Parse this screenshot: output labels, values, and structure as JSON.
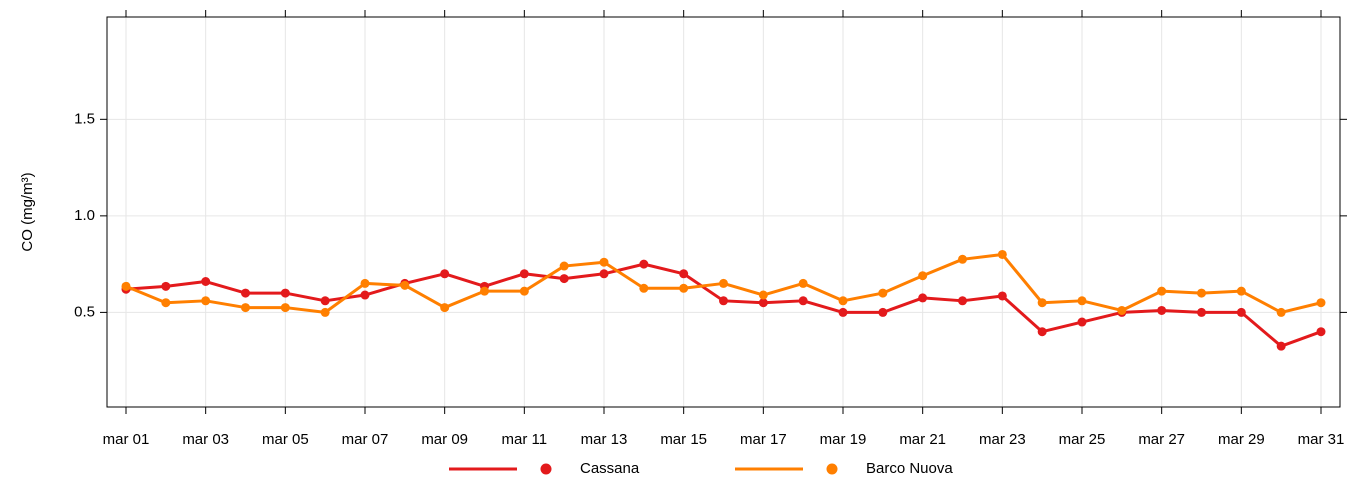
{
  "chart_data": {
    "type": "line",
    "y_label": "CO (mg/m³)",
    "categories": [
      "mar 01",
      null,
      "mar 03",
      null,
      "mar 05",
      null,
      "mar 07",
      null,
      "mar 09",
      null,
      "mar 11",
      null,
      "mar 13",
      null,
      "mar 15",
      null,
      "mar 17",
      null,
      "mar 19",
      null,
      "mar 21",
      null,
      "mar 23",
      null,
      "mar 25",
      null,
      "mar 27",
      null,
      "mar 29",
      null,
      "mar 31"
    ],
    "series": [
      {
        "name": "Cassana",
        "color": "#e31a1c",
        "values": [
          0.62,
          0.635,
          0.66,
          0.6,
          0.6,
          0.56,
          0.59,
          0.65,
          0.7,
          0.635,
          0.7,
          0.675,
          0.7,
          0.75,
          0.7,
          0.56,
          0.55,
          0.56,
          0.5,
          0.5,
          0.575,
          0.56,
          0.585,
          0.4,
          0.45,
          0.5,
          0.51,
          0.5,
          0.5,
          0.325,
          0.4
        ]
      },
      {
        "name": "Barco Nuova",
        "color": "#ff7f00",
        "values": [
          0.635,
          0.55,
          0.56,
          0.525,
          0.525,
          0.5,
          0.65,
          0.64,
          0.525,
          0.61,
          0.61,
          0.74,
          0.76,
          0.625,
          0.625,
          0.65,
          0.59,
          0.65,
          0.56,
          0.6,
          0.69,
          0.775,
          0.8,
          0.55,
          0.56,
          0.51,
          0.61,
          0.6,
          0.61,
          0.5,
          0.55
        ]
      }
    ],
    "ylim": [
      0.01,
      2.03
    ],
    "yticks": [
      0.5,
      {
        "value": 1,
        "label": "1.0"
      },
      1.5
    ],
    "grid": true
  }
}
